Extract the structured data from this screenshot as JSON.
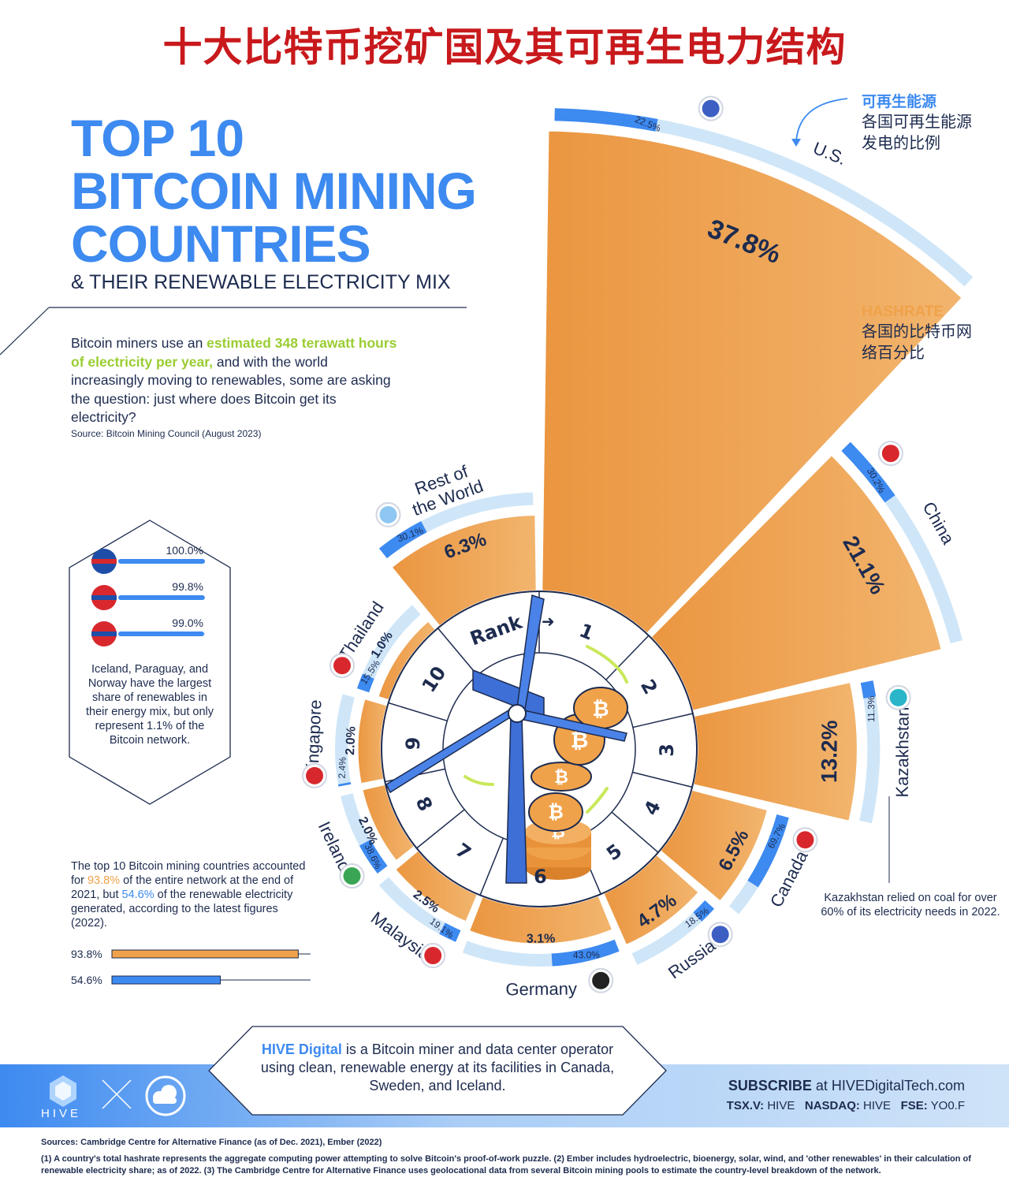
{
  "header": {
    "cn_title": "十大比特币挖矿国及其可再生电力结构",
    "title_line1": "TOP 10",
    "title_line2": "BITCOIN MINING",
    "title_line3": "COUNTRIES",
    "subtitle": "& THEIR RENEWABLE ELECTRICITY MIX"
  },
  "intro": {
    "text_a": "Bitcoin miners use an ",
    "highlight": "estimated 348 terawatt hours of electricity per year,",
    "text_b": " and with the world increasingly moving to renewables, some are asking the question: just where does Bitcoin get its electricity?",
    "source": "Source: Bitcoin Mining Council (August 2023)"
  },
  "legend": {
    "renewable_head": "可再生能源",
    "renewable_desc_1": "各国可再生能源",
    "renewable_desc_2": "发电的比例",
    "hashrate_head": "HASHRATE",
    "hashrate_desc_1": "各国的比特币网",
    "hashrate_desc_2": "络百分比"
  },
  "colors": {
    "hashrate_orange": "#f0a24a",
    "renewable_blue": "#3d8af0",
    "track_light_blue": "#cfe6f8",
    "navy": "#1d2b4f",
    "title_red": "#c8191c",
    "accent_green": "#9acd32"
  },
  "chart_data": {
    "type": "radial-bar",
    "rank_label": "Rank",
    "countries": [
      {
        "rank": "1",
        "name": "U.S.",
        "hashrate": 37.8,
        "hashrate_label": "37.8%",
        "renewable": 22.5,
        "renewable_label": "22.5%",
        "flag": "us-flag-icon"
      },
      {
        "rank": "2",
        "name": "China",
        "hashrate": 21.1,
        "hashrate_label": "21.1%",
        "renewable": 30.2,
        "renewable_label": "30.2%",
        "flag": "china-flag-icon"
      },
      {
        "rank": "3",
        "name": "Kazakhstan",
        "hashrate": 13.2,
        "hashrate_label": "13.2%",
        "renewable": 11.3,
        "renewable_label": "11.3%",
        "flag": "kazakhstan-flag-icon"
      },
      {
        "rank": "4",
        "name": "Canada",
        "hashrate": 6.5,
        "hashrate_label": "6.5%",
        "renewable": 69.7,
        "renewable_label": "69.7%",
        "flag": "canada-flag-icon"
      },
      {
        "rank": "5",
        "name": "Russia",
        "hashrate": 4.7,
        "hashrate_label": "4.7%",
        "renewable": 18.5,
        "renewable_label": "18.5%",
        "flag": "russia-flag-icon"
      },
      {
        "rank": "6",
        "name": "Germany",
        "hashrate": 3.1,
        "hashrate_label": "3.1%",
        "renewable": 43.0,
        "renewable_label": "43.0%",
        "flag": "germany-flag-icon"
      },
      {
        "rank": "7",
        "name": "Malaysia",
        "hashrate": 2.5,
        "hashrate_label": "2.5%",
        "renewable": 19.1,
        "renewable_label": "19.1%",
        "flag": "malaysia-flag-icon"
      },
      {
        "rank": "8",
        "name": "Ireland",
        "hashrate": 2.0,
        "hashrate_label": "2.0%",
        "renewable": 38.6,
        "renewable_label": "38.6%",
        "flag": "ireland-flag-icon"
      },
      {
        "rank": "9",
        "name": "Singapore",
        "hashrate": 2.0,
        "hashrate_label": "2.0%",
        "renewable": 2.4,
        "renewable_label": "2.4%",
        "flag": "singapore-flag-icon"
      },
      {
        "rank": "10",
        "name": "Thailand",
        "hashrate": 1.0,
        "hashrate_label": "1.0%",
        "renewable": 15.5,
        "renewable_label": "15.5%",
        "flag": "thailand-flag-icon"
      },
      {
        "rank": "",
        "name_line1": "Rest of",
        "name_line2": "the World",
        "hashrate": 6.3,
        "hashrate_label": "6.3%",
        "renewable": 30.1,
        "renewable_label": "30.1%",
        "flag": "globe-icon"
      }
    ]
  },
  "iceland_box": {
    "items": [
      {
        "flag": "iceland-flag-icon",
        "value": 100.0,
        "label": "100.0%"
      },
      {
        "flag": "paraguay-flag-icon",
        "value": 99.8,
        "label": "99.8%"
      },
      {
        "flag": "norway-flag-icon",
        "value": 99.0,
        "label": "99.0%"
      }
    ],
    "note": "Iceland, Paraguay, and Norway have the largest share of renewables in their energy mix, but only represent 1.1% of the Bitcoin network."
  },
  "top10_note": {
    "text_a": "The top 10 Bitcoin mining countries accounted for ",
    "hash_value": "93.8%",
    "text_b": " of the entire network at the end of 2021, but ",
    "renew_value": "54.6%",
    "text_c": " of the renewable electricity generated, according to the latest figures (2022).",
    "bar_hash": {
      "label": "93.8%",
      "value": 93.8
    },
    "bar_renew": {
      "label": "54.6%",
      "value": 54.6
    }
  },
  "kaz_note": "Kazakhstan relied on coal for over 60% of its electricity needs in 2022.",
  "hive": {
    "brand": "HIVE Digital",
    "text": " is a Bitcoin miner and data center operator using clean, renewable energy at its facilities in Canada, Sweden, and Iceland.",
    "subscribe_head": "SUBSCRIBE",
    "subscribe_rest": " at HIVEDigitalTech.com",
    "tsx_k": "TSX.V:",
    "tsx_v": " HIVE",
    "nasdaq_k": "NASDAQ:",
    "nasdaq_v": " HIVE",
    "fse_k": "FSE:",
    "fse_v": " YO0.F",
    "logo_text": "HIVE"
  },
  "footer": {
    "sources": "Sources: Cambridge Centre for Alternative Finance (as of Dec. 2021), Ember (2022)",
    "notes": "(1) A country's total hashrate represents the aggregate computing power attempting to solve Bitcoin's proof-of-work puzzle.  (2) Ember includes hydroelectric, bioenergy, solar, wind, and 'other renewables' in their calculation of renewable electricity share; as of 2022.  (3) The Cambridge Centre for Alternative Finance uses geolocational data from several Bitcoin mining pools to estimate the country-level breakdown of the network."
  }
}
